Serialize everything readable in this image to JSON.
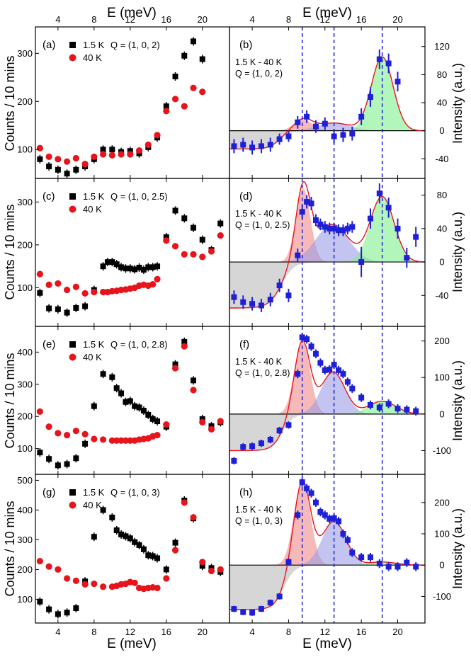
{
  "figure": {
    "top_xlabel": "E (meV)",
    "bottom_xlabel": "E (meV)",
    "left_ylabel": "Counts / 10 mins",
    "right_ylabel": "Intensity (a.u.)",
    "x_ticks": [
      4,
      8,
      12,
      16,
      20
    ]
  },
  "legend": {
    "lowT": "1.5 K",
    "highT": "40 K",
    "diff": "1.5 K - 40 K"
  },
  "colors": {
    "lowT": "#000000",
    "highT": "#e8141c",
    "diff": "#1f1fd6",
    "fit": "#e8141c",
    "dashed": "#1f1fd6",
    "peak1": "#f08a8a",
    "peak2": "#9c9ce8",
    "peak3": "#7ef08e",
    "background": "#c8c8c8"
  },
  "chart_data": [
    {
      "panel": "a",
      "type": "scatter",
      "q_label": "Q = (1, 0, 2)",
      "xlim": [
        1.5,
        23
      ],
      "ylim": [
        40,
        355
      ],
      "yticks": [
        100,
        200,
        300
      ],
      "series": [
        {
          "name": "1.5 K",
          "x": [
            2,
            3,
            4,
            5,
            6,
            7,
            8,
            9,
            10,
            11,
            12,
            13,
            14,
            15,
            16,
            17,
            18,
            19,
            20
          ],
          "y": [
            80,
            65,
            58,
            50,
            58,
            65,
            80,
            100,
            100,
            95,
            97,
            92,
            105,
            125,
            190,
            252,
            295,
            325,
            288
          ]
        },
        {
          "name": "40 K",
          "x": [
            2,
            3,
            4,
            5,
            6,
            7,
            8,
            9,
            10,
            11,
            12,
            13,
            14,
            15,
            16,
            17,
            18,
            19,
            20
          ],
          "y": [
            103,
            85,
            80,
            75,
            82,
            70,
            85,
            90,
            88,
            90,
            90,
            98,
            110,
            130,
            180,
            205,
            190,
            228,
            220
          ]
        }
      ]
    },
    {
      "panel": "b",
      "type": "scatter",
      "q_label": "Q = (1, 0, 2)",
      "xlim": [
        1.5,
        23
      ],
      "ylim": [
        -68,
        148
      ],
      "yticks": [
        -40,
        0,
        40,
        80,
        120
      ],
      "x": [
        2,
        3,
        4,
        5,
        6,
        7,
        8,
        9,
        10,
        11,
        12,
        13,
        14,
        15,
        16,
        17,
        18,
        19,
        20
      ],
      "y": [
        -22,
        -20,
        -24,
        -22,
        -20,
        -12,
        -8,
        12,
        20,
        6,
        10,
        -8,
        -6,
        -4,
        20,
        48,
        102,
        96,
        70
      ],
      "err": [
        10,
        10,
        10,
        10,
        10,
        8,
        8,
        9,
        9,
        9,
        9,
        10,
        10,
        10,
        12,
        14,
        14,
        14,
        14
      ],
      "peaks": [
        {
          "center": 9.6,
          "amp": 16,
          "sigma": 1.0,
          "fill": "peak1"
        },
        {
          "center": 13.0,
          "amp": 11,
          "sigma": 1.8,
          "fill": "peak2"
        },
        {
          "center": 18.3,
          "amp": 105,
          "sigma": 1.2,
          "fill": "peak3"
        }
      ],
      "bg": {
        "level": -26,
        "edge": 7.0,
        "width": 0.6
      },
      "dashed_x": [
        9.5,
        13.0,
        18.3
      ]
    },
    {
      "panel": "c",
      "type": "scatter",
      "q_label": "Q = (1, 0, 2.5)",
      "xlim": [
        1.5,
        23
      ],
      "ylim": [
        10,
        355
      ],
      "yticks": [
        100,
        200,
        300
      ],
      "series": [
        {
          "name": "1.5 K",
          "x": [
            2,
            3,
            4,
            5,
            6,
            7,
            8,
            9,
            9.5,
            10,
            10.5,
            11,
            11.5,
            12,
            12.5,
            13,
            13.5,
            14,
            14.5,
            15,
            16,
            17,
            18,
            19,
            20,
            21,
            22
          ],
          "y": [
            88,
            52,
            50,
            42,
            53,
            57,
            95,
            150,
            160,
            160,
            155,
            148,
            145,
            145,
            143,
            147,
            142,
            148,
            148,
            150,
            218,
            280,
            262,
            240,
            212,
            188,
            250
          ]
        },
        {
          "name": "40 K",
          "x": [
            2,
            3,
            4,
            5,
            6,
            7,
            8,
            9,
            9.5,
            10,
            10.5,
            11,
            11.5,
            12,
            12.5,
            13,
            13.5,
            14,
            14.5,
            15,
            16,
            17,
            18,
            19,
            20,
            21,
            22
          ],
          "y": [
            132,
            107,
            110,
            95,
            102,
            87,
            90,
            90,
            90,
            92,
            93,
            95,
            96,
            98,
            100,
            105,
            107,
            105,
            108,
            120,
            210,
            197,
            178,
            178,
            172,
            185,
            222
          ]
        }
      ]
    },
    {
      "panel": "d",
      "type": "scatter",
      "q_label": "Q = (1, 0, 2.5)",
      "xlim": [
        1.5,
        23
      ],
      "ylim": [
        -77,
        100
      ],
      "yticks": [
        -40,
        0,
        40,
        80
      ],
      "x": [
        2,
        3,
        4,
        5,
        6,
        7,
        8,
        9,
        9.5,
        10,
        10.5,
        11,
        11.5,
        12,
        12.5,
        13,
        13.5,
        14,
        14.5,
        15,
        16,
        17,
        18,
        19,
        20,
        21,
        22
      ],
      "y": [
        -42,
        -48,
        -50,
        -52,
        -45,
        -28,
        -40,
        8,
        60,
        72,
        70,
        50,
        45,
        42,
        40,
        40,
        38,
        38,
        40,
        42,
        0,
        52,
        82,
        65,
        40,
        5,
        30
      ],
      "err": [
        8,
        8,
        8,
        8,
        8,
        8,
        8,
        8,
        8,
        8,
        8,
        7,
        7,
        7,
        7,
        7,
        7,
        7,
        7,
        7,
        18,
        12,
        12,
        12,
        12,
        12,
        12
      ],
      "peaks": [
        {
          "center": 9.6,
          "amp": 88,
          "sigma": 0.8,
          "fill": "peak1"
        },
        {
          "center": 12.8,
          "amp": 45,
          "sigma": 1.8,
          "fill": "peak2"
        },
        {
          "center": 18.3,
          "amp": 78,
          "sigma": 1.3,
          "fill": "peak3"
        }
      ],
      "bg": {
        "level": -55,
        "edge": 7.2,
        "width": 0.7
      },
      "dashed_x": [
        9.5,
        13.0,
        18.3
      ]
    },
    {
      "panel": "e",
      "type": "scatter",
      "q_label": "Q = (1, 0, 2.8)",
      "xlim": [
        1.5,
        23
      ],
      "ylim": [
        20,
        480
      ],
      "yticks": [
        100,
        200,
        300,
        400
      ],
      "series": [
        {
          "name": "1.5 K",
          "x": [
            2,
            3,
            4,
            5,
            6,
            7,
            8,
            9,
            10,
            10.5,
            11,
            11.5,
            12,
            12.5,
            13,
            13.5,
            14,
            14.5,
            15,
            16,
            17,
            18,
            19,
            20,
            21,
            22
          ],
          "y": [
            88,
            68,
            48,
            52,
            70,
            115,
            232,
            332,
            322,
            288,
            272,
            245,
            248,
            232,
            228,
            218,
            205,
            192,
            185,
            168,
            362,
            432,
            312,
            192,
            170,
            182
          ]
        },
        {
          "name": "40 K",
          "x": [
            2,
            3,
            4,
            5,
            6,
            7,
            8,
            9,
            10,
            10.5,
            11,
            11.5,
            12,
            12.5,
            13,
            13.5,
            14,
            14.5,
            15,
            16,
            17,
            18,
            19,
            20,
            21,
            22
          ],
          "y": [
            215,
            168,
            148,
            142,
            155,
            145,
            130,
            128,
            125,
            125,
            125,
            125,
            125,
            125,
            128,
            130,
            132,
            138,
            142,
            175,
            350,
            418,
            282,
            182,
            160,
            185
          ]
        }
      ]
    },
    {
      "panel": "f",
      "type": "scatter",
      "q_label": "Q = (1, 0, 2.8)",
      "xlim": [
        1.5,
        23
      ],
      "ylim": [
        -165,
        240
      ],
      "yticks": [
        -100,
        0,
        100,
        200
      ],
      "x": [
        2,
        3,
        4,
        5,
        6,
        7,
        8,
        9,
        9.5,
        10,
        10.5,
        11,
        11.5,
        12,
        12.5,
        13,
        13.5,
        14,
        14.5,
        15,
        16,
        17,
        18,
        19,
        20,
        21,
        22
      ],
      "y": [
        -128,
        -90,
        -88,
        -80,
        -70,
        -45,
        -30,
        110,
        210,
        205,
        185,
        165,
        140,
        120,
        122,
        135,
        120,
        110,
        88,
        70,
        45,
        25,
        18,
        28,
        15,
        12,
        8
      ],
      "err": [
        10,
        10,
        10,
        10,
        10,
        10,
        10,
        12,
        12,
        12,
        12,
        12,
        12,
        12,
        12,
        12,
        12,
        12,
        12,
        12,
        12,
        12,
        12,
        12,
        12,
        12,
        12
      ],
      "peaks": [
        {
          "center": 9.5,
          "amp": 200,
          "sigma": 0.85,
          "fill": "peak1"
        },
        {
          "center": 12.9,
          "amp": 115,
          "sigma": 1.3,
          "fill": "peak2"
        },
        {
          "center": 18.3,
          "amp": 35,
          "sigma": 1.5,
          "fill": "peak3"
        }
      ],
      "bg": {
        "level": -100,
        "edge": 7.3,
        "width": 0.6
      },
      "dashed_x": [
        9.5,
        13.0,
        18.3
      ]
    },
    {
      "panel": "g",
      "type": "scatter",
      "q_label": "Q = (1, 0, 3)",
      "xlim": [
        1.5,
        23
      ],
      "ylim": [
        20,
        520
      ],
      "yticks": [
        100,
        200,
        300,
        400,
        500
      ],
      "series": [
        {
          "name": "1.5 K",
          "x": [
            2,
            3,
            4,
            5,
            6,
            7,
            8,
            9,
            10,
            10.5,
            11,
            11.5,
            12,
            12.5,
            13,
            13.5,
            14,
            14.5,
            15,
            16,
            17,
            18,
            19,
            20,
            21,
            22
          ],
          "y": [
            92,
            66,
            50,
            55,
            70,
            160,
            310,
            400,
            375,
            332,
            318,
            312,
            305,
            292,
            282,
            268,
            248,
            245,
            238,
            200,
            290,
            432,
            372,
            212,
            205,
            192
          ]
        },
        {
          "name": "40 K",
          "x": [
            2,
            3,
            4,
            5,
            6,
            7,
            8,
            9,
            10,
            10.5,
            11,
            11.5,
            12,
            12.5,
            13,
            13.5,
            14,
            14.5,
            15,
            16,
            17,
            18,
            19,
            20,
            21,
            22
          ],
          "y": [
            228,
            210,
            200,
            170,
            162,
            150,
            152,
            142,
            142,
            145,
            150,
            152,
            158,
            155,
            138,
            135,
            138,
            140,
            138,
            170,
            265,
            425,
            375,
            225,
            195,
            200
          ]
        }
      ]
    },
    {
      "panel": "h",
      "type": "scatter",
      "q_label": "Q = (1, 0, 3)",
      "xlim": [
        1.5,
        23
      ],
      "ylim": [
        -185,
        290
      ],
      "yticks": [
        -100,
        0,
        100,
        200
      ],
      "x": [
        2,
        3,
        4,
        5,
        6,
        7,
        8,
        9,
        9.5,
        10,
        10.5,
        11,
        11.5,
        12,
        12.5,
        13,
        13.5,
        14,
        14.5,
        15,
        16,
        17,
        18,
        19,
        20,
        21,
        22
      ],
      "y": [
        -140,
        -150,
        -152,
        -140,
        -120,
        -100,
        10,
        160,
        265,
        245,
        230,
        200,
        170,
        160,
        148,
        150,
        140,
        100,
        80,
        40,
        25,
        25,
        5,
        -5,
        -5,
        8,
        -5
      ],
      "err": [
        10,
        10,
        10,
        10,
        10,
        10,
        12,
        14,
        14,
        14,
        14,
        14,
        14,
        14,
        14,
        14,
        14,
        14,
        14,
        14,
        14,
        14,
        14,
        14,
        14,
        14,
        14
      ],
      "peaks": [
        {
          "center": 9.5,
          "amp": 270,
          "sigma": 0.9,
          "fill": "peak1"
        },
        {
          "center": 13.0,
          "amp": 140,
          "sigma": 1.3,
          "fill": "peak2"
        },
        {
          "center": 18.3,
          "amp": 10,
          "sigma": 1.5,
          "fill": "peak3"
        }
      ],
      "bg": {
        "level": -142,
        "edge": 7.5,
        "width": 0.6
      },
      "dashed_x": [
        9.5,
        13.0,
        18.3
      ]
    }
  ]
}
